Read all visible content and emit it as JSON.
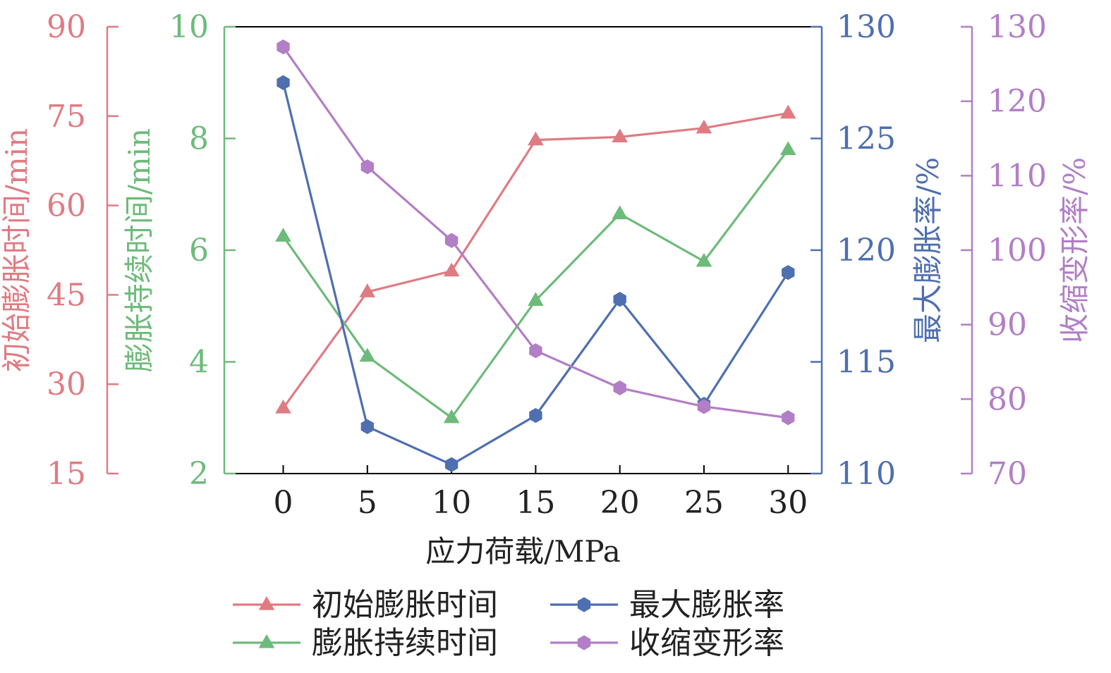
{
  "chart_data": {
    "type": "line",
    "x": [
      0,
      5,
      10,
      15,
      20,
      25,
      30
    ],
    "xlabel": "应力荷载/MPa",
    "xlim": [
      -3.5,
      32
    ],
    "series": [
      {
        "name": "初始膨胀时间",
        "axis": "left1",
        "marker": "triangle",
        "color": "#E07B82",
        "values": [
          26,
          45.5,
          49,
          71,
          71.5,
          73,
          75.5
        ]
      },
      {
        "name": "膨胀持续时间",
        "axis": "left2",
        "marker": "triangle",
        "color": "#6DBB7A",
        "values": [
          6.25,
          4.1,
          3.0,
          5.1,
          6.65,
          5.8,
          7.8
        ]
      },
      {
        "name": "最大膨胀率",
        "axis": "right1",
        "marker": "hexagon",
        "color": "#4E6FB0",
        "values": [
          127.5,
          112.1,
          110.4,
          112.6,
          117.8,
          113.1,
          119
        ]
      },
      {
        "name": "收缩变形率",
        "axis": "right2",
        "marker": "hexagon",
        "color": "#B27EC6",
        "values": [
          127.3,
          111.2,
          101.3,
          86.5,
          81.5,
          79,
          77.5
        ]
      }
    ],
    "axes": {
      "left1": {
        "label": "初始膨胀时间/min",
        "ylim": [
          15,
          90
        ],
        "ticks": [
          15,
          30,
          45,
          60,
          75,
          90
        ],
        "color": "#E07B82"
      },
      "left2": {
        "label": "膨胀持续时间/min",
        "ylim": [
          2,
          10
        ],
        "ticks": [
          2,
          4,
          6,
          8,
          10
        ],
        "color": "#6DBB7A"
      },
      "right1": {
        "label": "最大膨胀率/%",
        "ylim": [
          110,
          130
        ],
        "ticks": [
          110,
          115,
          120,
          125,
          130
        ],
        "color": "#4E6FB0"
      },
      "right2": {
        "label": "收缩变形率/%",
        "ylim": [
          70,
          130
        ],
        "ticks": [
          70,
          80,
          90,
          100,
          110,
          120,
          130
        ],
        "color": "#B27EC6"
      }
    },
    "legend": {
      "placement": "bottom",
      "columns": 2,
      "order": [
        "初始膨胀时间",
        "最大膨胀率",
        "膨胀持续时间",
        "收缩变形率"
      ]
    },
    "grid": false
  }
}
